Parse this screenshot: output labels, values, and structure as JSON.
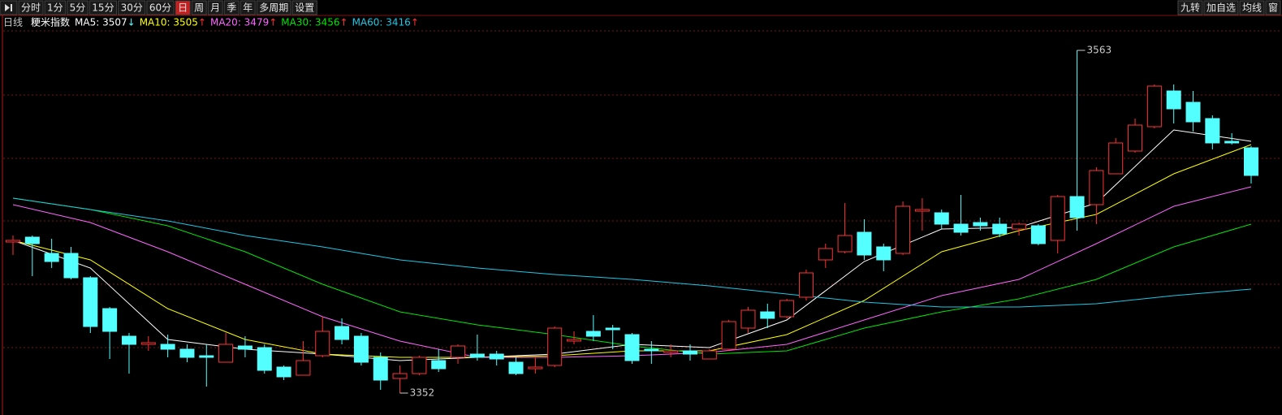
{
  "toolbar": {
    "left": [
      "分时",
      "1分",
      "5分",
      "15分",
      "30分",
      "60分",
      "日",
      "周",
      "月",
      "季",
      "年",
      "多周期",
      "设置"
    ],
    "active": 6,
    "active_color": "#c81e1e",
    "right": [
      "九转",
      "加自选",
      "均线",
      "窗"
    ]
  },
  "chart_data": {
    "type": "candlestick",
    "period": "日线",
    "title": "粳米指数",
    "up_color": "#ff3232",
    "down_color": "#54ffff",
    "candles": {
      "open": [
        3445,
        3448,
        3438,
        3438,
        3423,
        3404,
        3387,
        3382,
        3382,
        3379,
        3375,
        3371,
        3381,
        3380,
        3368,
        3363,
        3375,
        3393,
        3387,
        3374,
        3361,
        3364,
        3372,
        3374,
        3376,
        3376,
        3371,
        3367,
        3369,
        3384,
        3390,
        3392,
        3388,
        3379,
        3377,
        3378,
        3373,
        3379,
        3392,
        3402,
        3399,
        3411,
        3434,
        3439,
        3451,
        3442,
        3438,
        3464,
        3463,
        3456,
        3457,
        3456,
        3453,
        3455,
        3446,
        3473,
        3468,
        3487,
        3501,
        3516,
        3538,
        3531,
        3521,
        3507,
        3503
      ],
      "high": [
        3449,
        3449,
        3447,
        3442,
        3424,
        3405,
        3389,
        3387,
        3388,
        3382,
        3382,
        3389,
        3387,
        3382,
        3369,
        3384,
        3399,
        3398,
        3389,
        3377,
        3369,
        3375,
        3379,
        3382,
        3388,
        3378,
        3374,
        3374,
        3393,
        3390,
        3400,
        3394,
        3389,
        3384,
        3382,
        3382,
        3379,
        3397,
        3405,
        3407,
        3410,
        3428,
        3444,
        3469,
        3459,
        3444,
        3470,
        3472,
        3465,
        3474,
        3460,
        3460,
        3457,
        3456,
        3474,
        3563,
        3491,
        3509,
        3521,
        3542,
        3542,
        3538,
        3523,
        3512,
        3504
      ],
      "low": [
        3437,
        3424,
        3429,
        3422,
        3389,
        3373,
        3364,
        3378,
        3374,
        3371,
        3356,
        3371,
        3374,
        3364,
        3360,
        3363,
        3374,
        3382,
        3369,
        3354,
        3352,
        3363,
        3365,
        3370,
        3372,
        3369,
        3363,
        3364,
        3368,
        3382,
        3384,
        3379,
        3370,
        3370,
        3374,
        3372,
        3373,
        3378,
        3389,
        3392,
        3398,
        3409,
        3429,
        3438,
        3434,
        3427,
        3437,
        3452,
        3453,
        3449,
        3452,
        3448,
        3449,
        3443,
        3438,
        3452,
        3456,
        3487,
        3500,
        3515,
        3518,
        3513,
        3502,
        3505,
        3481
      ],
      "close": [
        3446,
        3444,
        3433,
        3423,
        3393,
        3390,
        3382,
        3383,
        3379,
        3374,
        3374,
        3382,
        3379,
        3366,
        3362,
        3372,
        3390,
        3385,
        3371,
        3360,
        3364,
        3374,
        3367,
        3381,
        3374,
        3373,
        3364,
        3368,
        3392,
        3385,
        3387,
        3391,
        3372,
        3378,
        3378,
        3376,
        3378,
        3396,
        3403,
        3398,
        3409,
        3426,
        3441,
        3449,
        3437,
        3434,
        3467,
        3465,
        3456,
        3451,
        3455,
        3450,
        3456,
        3444,
        3473,
        3460,
        3489,
        3506,
        3517,
        3541,
        3527,
        3519,
        3506,
        3506,
        3486
      ]
    },
    "series": [
      {
        "name": "MA5: 3507",
        "trend": "↓",
        "trend_color": "#54ffff",
        "color": "#ffffff",
        "x": [
          0,
          4,
          8,
          12,
          16,
          20,
          24,
          28,
          32,
          36,
          40,
          44,
          48,
          52,
          56,
          60,
          64
        ],
        "values": [
          3446,
          3429,
          3385,
          3379,
          3376,
          3372,
          3374,
          3376,
          3382,
          3380,
          3397,
          3433,
          3453,
          3454,
          3469,
          3514,
          3507
        ]
      },
      {
        "name": "MA10: 3505",
        "trend": "↑",
        "trend_color": "#ff3232",
        "color": "#ffff00",
        "x": [
          0,
          4,
          8,
          12,
          16,
          20,
          24,
          28,
          32,
          36,
          40,
          44,
          48,
          52,
          56,
          60,
          64
        ],
        "values": [
          3446,
          3434,
          3404,
          3385,
          3376,
          3374,
          3374,
          3375,
          3378,
          3378,
          3388,
          3409,
          3439,
          3452,
          3462,
          3487,
          3505
        ]
      },
      {
        "name": "MA20: 3479",
        "trend": "↑",
        "trend_color": "#ff3232",
        "color": "#ff66ff",
        "x": [
          0,
          4,
          8,
          12,
          16,
          20,
          24,
          28,
          32,
          36,
          40,
          44,
          48,
          52,
          56,
          60,
          64
        ],
        "values": [
          3468,
          3457,
          3439,
          3419,
          3399,
          3384,
          3374,
          3374,
          3375,
          3377,
          3382,
          3397,
          3412,
          3422,
          3444,
          3467,
          3479
        ]
      },
      {
        "name": "MA30: 3456",
        "trend": "↑",
        "trend_color": "#ff3232",
        "color": "#00e600",
        "x": [
          0,
          4,
          8,
          12,
          16,
          20,
          24,
          28,
          32,
          36,
          40,
          44,
          48,
          52,
          56,
          60,
          64
        ],
        "values": [
          3472,
          3465,
          3455,
          3439,
          3419,
          3402,
          3394,
          3388,
          3381,
          3376,
          3378,
          3392,
          3402,
          3410,
          3422,
          3442,
          3456
        ]
      },
      {
        "name": "MA60: 3416",
        "trend": "↑",
        "trend_color": "#ff3232",
        "color": "#1ec8e6",
        "x": [
          0,
          4,
          8,
          12,
          16,
          20,
          24,
          28,
          32,
          36,
          40,
          44,
          48,
          52,
          56,
          60,
          64
        ],
        "values": [
          3472,
          3465,
          3458,
          3449,
          3442,
          3434,
          3429,
          3425,
          3422,
          3418,
          3413,
          3408,
          3405,
          3405,
          3407,
          3412,
          3416
        ]
      }
    ],
    "max_label": 3563,
    "min_label": 3352
  }
}
